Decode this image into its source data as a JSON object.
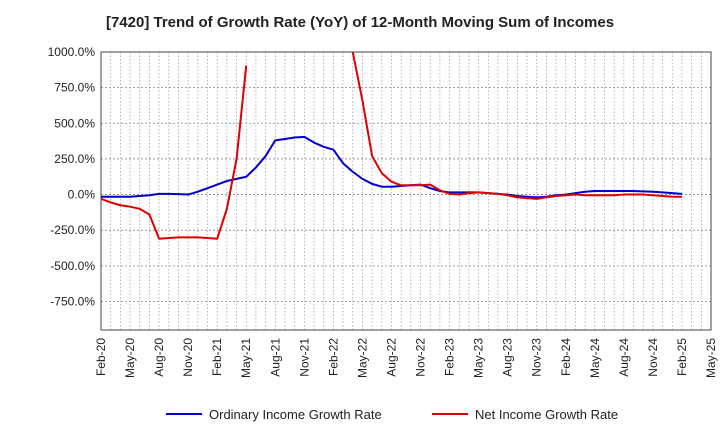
{
  "chart_data": {
    "type": "line",
    "title": "[7420]  Trend of Growth Rate (YoY) of 12-Month Moving Sum of Incomes",
    "xlabel": "",
    "ylabel": "",
    "ylim": [
      -950,
      1000
    ],
    "grid": true,
    "legend_position": "bottom",
    "y_ticks": [
      "1000.0%",
      "750.0%",
      "500.0%",
      "250.0%",
      "0.0%",
      "-250.0%",
      "-500.0%",
      "-750.0%"
    ],
    "x_ticks": [
      "Feb-20",
      "May-20",
      "Aug-20",
      "Nov-20",
      "Feb-21",
      "May-21",
      "Aug-21",
      "Nov-21",
      "Feb-22",
      "May-22",
      "Aug-22",
      "Nov-22",
      "Feb-23",
      "May-23",
      "Aug-23",
      "Nov-23",
      "Feb-24",
      "May-24",
      "Aug-24",
      "Nov-24",
      "Feb-25",
      "May-25"
    ],
    "x": [
      "Feb-20",
      "Mar-20",
      "Apr-20",
      "May-20",
      "Jun-20",
      "Jul-20",
      "Aug-20",
      "Sep-20",
      "Oct-20",
      "Nov-20",
      "Dec-20",
      "Jan-21",
      "Feb-21",
      "Mar-21",
      "Apr-21",
      "May-21",
      "Jun-21",
      "Jul-21",
      "Aug-21",
      "Sep-21",
      "Oct-21",
      "Nov-21",
      "Dec-21",
      "Jan-22",
      "Feb-22",
      "Mar-22",
      "Apr-22",
      "May-22",
      "Jun-22",
      "Jul-22",
      "Aug-22",
      "Sep-22",
      "Oct-22",
      "Nov-22",
      "Dec-22",
      "Jan-23",
      "Feb-23",
      "Mar-23",
      "Apr-23",
      "May-23",
      "Jun-23",
      "Jul-23",
      "Aug-23",
      "Sep-23",
      "Oct-23",
      "Nov-23",
      "Dec-23",
      "Jan-24",
      "Feb-24",
      "Mar-24",
      "Apr-24",
      "May-24",
      "Jun-24",
      "Jul-24",
      "Aug-24",
      "Sep-24",
      "Oct-24",
      "Nov-24",
      "Dec-24",
      "Jan-25",
      "Feb-25"
    ],
    "series": [
      {
        "name": "Ordinary Income Growth Rate",
        "color": "#0000cc",
        "values": [
          -15,
          -15,
          -15,
          -15,
          -10,
          -5,
          5,
          5,
          3,
          0,
          20,
          45,
          70,
          95,
          110,
          125,
          190,
          270,
          380,
          390,
          400,
          405,
          365,
          335,
          315,
          220,
          160,
          110,
          75,
          55,
          55,
          60,
          65,
          70,
          45,
          25,
          15,
          15,
          15,
          15,
          10,
          5,
          0,
          -10,
          -15,
          -20,
          -15,
          -5,
          0,
          10,
          20,
          25,
          25,
          25,
          25,
          25,
          22,
          20,
          15,
          10,
          5
        ]
      },
      {
        "name": "Net Income Growth Rate",
        "color": "#dd0000",
        "values": [
          -30,
          -55,
          -75,
          -85,
          -100,
          -140,
          -310,
          -305,
          -300,
          -300,
          -300,
          -305,
          -310,
          -100,
          250,
          905,
          null,
          null,
          null,
          null,
          null,
          null,
          null,
          null,
          null,
          null,
          1000,
          660,
          270,
          150,
          90,
          65,
          65,
          65,
          70,
          30,
          5,
          0,
          10,
          15,
          10,
          5,
          -5,
          -20,
          -25,
          -30,
          -20,
          -10,
          -5,
          0,
          -5,
          -5,
          -5,
          -5,
          0,
          0,
          0,
          -5,
          -10,
          -15,
          -15
        ]
      }
    ]
  }
}
